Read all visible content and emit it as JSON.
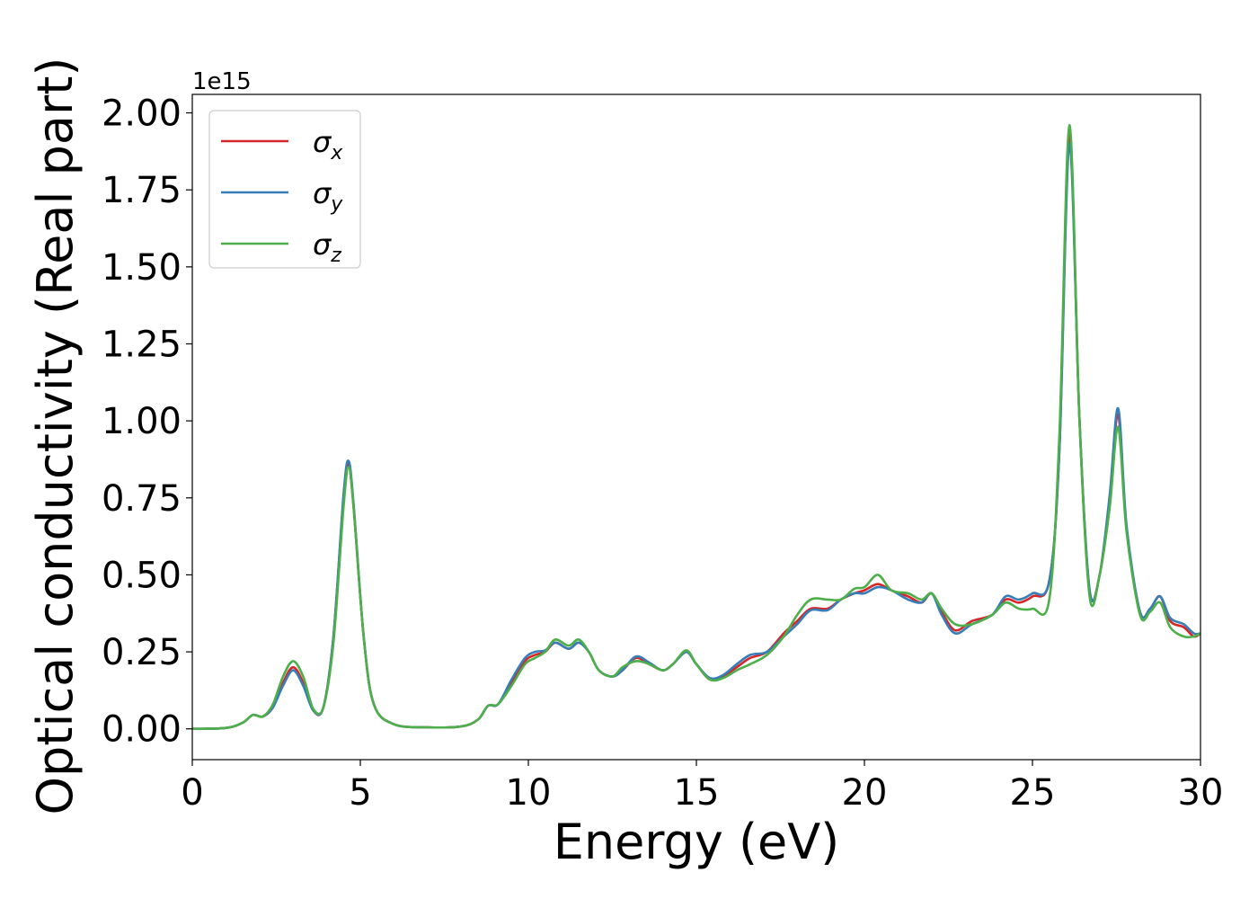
{
  "chart_data": {
    "type": "line",
    "xlabel": "Energy (eV)",
    "ylabel": "Optical conductivity (Real part)",
    "y_offset_label": "1e15",
    "xlim": [
      0,
      30
    ],
    "ylim": [
      -0.1,
      2.06
    ],
    "x_ticks": [
      "0",
      "5",
      "10",
      "15",
      "20",
      "25",
      "30"
    ],
    "y_ticks": [
      "0.00",
      "0.25",
      "0.50",
      "0.75",
      "1.00",
      "1.25",
      "1.50",
      "1.75",
      "2.00"
    ],
    "grid": false,
    "legend_position": "upper-left",
    "series": [
      {
        "name": "σx",
        "symbol": "σ",
        "subscript": "x",
        "color": "#d62728",
        "points": [
          [
            0,
            0.0
          ],
          [
            1.0,
            0.003
          ],
          [
            1.5,
            0.02
          ],
          [
            1.8,
            0.045
          ],
          [
            2.1,
            0.04
          ],
          [
            2.4,
            0.07
          ],
          [
            2.7,
            0.15
          ],
          [
            3.0,
            0.2
          ],
          [
            3.3,
            0.15
          ],
          [
            3.6,
            0.06
          ],
          [
            3.9,
            0.07
          ],
          [
            4.2,
            0.3
          ],
          [
            4.5,
            0.75
          ],
          [
            4.65,
            0.86
          ],
          [
            4.8,
            0.72
          ],
          [
            5.1,
            0.3
          ],
          [
            5.4,
            0.08
          ],
          [
            6.0,
            0.015
          ],
          [
            7.0,
            0.005
          ],
          [
            8.0,
            0.008
          ],
          [
            8.5,
            0.03
          ],
          [
            8.8,
            0.075
          ],
          [
            9.1,
            0.08
          ],
          [
            9.5,
            0.15
          ],
          [
            9.9,
            0.22
          ],
          [
            10.2,
            0.24
          ],
          [
            10.5,
            0.25
          ],
          [
            10.8,
            0.28
          ],
          [
            11.2,
            0.26
          ],
          [
            11.5,
            0.28
          ],
          [
            11.8,
            0.25
          ],
          [
            12.1,
            0.19
          ],
          [
            12.5,
            0.17
          ],
          [
            12.8,
            0.19
          ],
          [
            13.2,
            0.23
          ],
          [
            13.6,
            0.21
          ],
          [
            14.0,
            0.19
          ],
          [
            14.3,
            0.21
          ],
          [
            14.7,
            0.25
          ],
          [
            15.0,
            0.21
          ],
          [
            15.4,
            0.16
          ],
          [
            15.8,
            0.17
          ],
          [
            16.2,
            0.2
          ],
          [
            16.6,
            0.23
          ],
          [
            17.1,
            0.25
          ],
          [
            17.6,
            0.31
          ],
          [
            18.0,
            0.35
          ],
          [
            18.4,
            0.39
          ],
          [
            18.9,
            0.39
          ],
          [
            19.3,
            0.42
          ],
          [
            19.7,
            0.44
          ],
          [
            20.0,
            0.45
          ],
          [
            20.4,
            0.47
          ],
          [
            20.8,
            0.45
          ],
          [
            21.3,
            0.43
          ],
          [
            21.7,
            0.41
          ],
          [
            22.0,
            0.44
          ],
          [
            22.3,
            0.38
          ],
          [
            22.7,
            0.32
          ],
          [
            23.2,
            0.35
          ],
          [
            23.8,
            0.37
          ],
          [
            24.2,
            0.42
          ],
          [
            24.6,
            0.41
          ],
          [
            25.0,
            0.43
          ],
          [
            25.5,
            0.48
          ],
          [
            25.8,
            0.9
          ],
          [
            26.1,
            1.93
          ],
          [
            26.4,
            1.0
          ],
          [
            26.7,
            0.45
          ],
          [
            27.0,
            0.5
          ],
          [
            27.3,
            0.75
          ],
          [
            27.55,
            1.02
          ],
          [
            27.8,
            0.65
          ],
          [
            28.2,
            0.38
          ],
          [
            28.5,
            0.39
          ],
          [
            28.8,
            0.43
          ],
          [
            29.1,
            0.35
          ],
          [
            29.5,
            0.33
          ],
          [
            29.8,
            0.3
          ],
          [
            30,
            0.31
          ]
        ]
      },
      {
        "name": "σy",
        "symbol": "σ",
        "subscript": "y",
        "color": "#377eb8",
        "points": [
          [
            0,
            0.0
          ],
          [
            1.0,
            0.003
          ],
          [
            1.5,
            0.02
          ],
          [
            1.8,
            0.045
          ],
          [
            2.1,
            0.04
          ],
          [
            2.4,
            0.07
          ],
          [
            2.7,
            0.14
          ],
          [
            3.0,
            0.19
          ],
          [
            3.3,
            0.14
          ],
          [
            3.6,
            0.06
          ],
          [
            3.9,
            0.07
          ],
          [
            4.2,
            0.3
          ],
          [
            4.5,
            0.76
          ],
          [
            4.65,
            0.87
          ],
          [
            4.8,
            0.73
          ],
          [
            5.1,
            0.3
          ],
          [
            5.4,
            0.08
          ],
          [
            6.0,
            0.015
          ],
          [
            7.0,
            0.005
          ],
          [
            8.0,
            0.008
          ],
          [
            8.5,
            0.03
          ],
          [
            8.8,
            0.075
          ],
          [
            9.1,
            0.08
          ],
          [
            9.5,
            0.16
          ],
          [
            9.9,
            0.23
          ],
          [
            10.2,
            0.25
          ],
          [
            10.5,
            0.255
          ],
          [
            10.8,
            0.28
          ],
          [
            11.2,
            0.26
          ],
          [
            11.5,
            0.28
          ],
          [
            11.8,
            0.25
          ],
          [
            12.1,
            0.19
          ],
          [
            12.5,
            0.17
          ],
          [
            12.8,
            0.19
          ],
          [
            13.2,
            0.235
          ],
          [
            13.6,
            0.215
          ],
          [
            14.0,
            0.19
          ],
          [
            14.3,
            0.21
          ],
          [
            14.7,
            0.25
          ],
          [
            15.0,
            0.21
          ],
          [
            15.4,
            0.165
          ],
          [
            15.8,
            0.175
          ],
          [
            16.2,
            0.21
          ],
          [
            16.6,
            0.24
          ],
          [
            17.1,
            0.25
          ],
          [
            17.6,
            0.3
          ],
          [
            18.0,
            0.34
          ],
          [
            18.4,
            0.385
          ],
          [
            18.9,
            0.385
          ],
          [
            19.3,
            0.42
          ],
          [
            19.7,
            0.44
          ],
          [
            20.0,
            0.44
          ],
          [
            20.4,
            0.46
          ],
          [
            20.8,
            0.45
          ],
          [
            21.3,
            0.42
          ],
          [
            21.7,
            0.41
          ],
          [
            22.0,
            0.44
          ],
          [
            22.3,
            0.37
          ],
          [
            22.7,
            0.31
          ],
          [
            23.2,
            0.34
          ],
          [
            23.8,
            0.37
          ],
          [
            24.2,
            0.43
          ],
          [
            24.6,
            0.42
          ],
          [
            25.0,
            0.44
          ],
          [
            25.5,
            0.48
          ],
          [
            25.8,
            0.9
          ],
          [
            26.1,
            1.9
          ],
          [
            26.4,
            1.0
          ],
          [
            26.7,
            0.45
          ],
          [
            27.0,
            0.5
          ],
          [
            27.3,
            0.76
          ],
          [
            27.55,
            1.04
          ],
          [
            27.8,
            0.66
          ],
          [
            28.2,
            0.38
          ],
          [
            28.5,
            0.39
          ],
          [
            28.8,
            0.43
          ],
          [
            29.1,
            0.36
          ],
          [
            29.5,
            0.34
          ],
          [
            29.8,
            0.31
          ],
          [
            30,
            0.31
          ]
        ]
      },
      {
        "name": "σz",
        "symbol": "σ",
        "subscript": "z",
        "color": "#4daf4a",
        "points": [
          [
            0,
            0.0
          ],
          [
            1.0,
            0.003
          ],
          [
            1.5,
            0.02
          ],
          [
            1.8,
            0.045
          ],
          [
            2.1,
            0.04
          ],
          [
            2.4,
            0.08
          ],
          [
            2.7,
            0.17
          ],
          [
            3.0,
            0.22
          ],
          [
            3.3,
            0.17
          ],
          [
            3.6,
            0.065
          ],
          [
            3.9,
            0.07
          ],
          [
            4.2,
            0.28
          ],
          [
            4.5,
            0.72
          ],
          [
            4.65,
            0.85
          ],
          [
            4.8,
            0.72
          ],
          [
            5.1,
            0.3
          ],
          [
            5.4,
            0.08
          ],
          [
            6.0,
            0.015
          ],
          [
            7.0,
            0.005
          ],
          [
            8.0,
            0.008
          ],
          [
            8.5,
            0.03
          ],
          [
            8.8,
            0.075
          ],
          [
            9.1,
            0.08
          ],
          [
            9.5,
            0.14
          ],
          [
            9.9,
            0.21
          ],
          [
            10.2,
            0.23
          ],
          [
            10.5,
            0.25
          ],
          [
            10.8,
            0.29
          ],
          [
            11.2,
            0.27
          ],
          [
            11.5,
            0.29
          ],
          [
            11.8,
            0.25
          ],
          [
            12.1,
            0.19
          ],
          [
            12.5,
            0.17
          ],
          [
            12.8,
            0.2
          ],
          [
            13.2,
            0.22
          ],
          [
            13.6,
            0.21
          ],
          [
            14.0,
            0.19
          ],
          [
            14.3,
            0.21
          ],
          [
            14.7,
            0.255
          ],
          [
            15.0,
            0.21
          ],
          [
            15.4,
            0.16
          ],
          [
            15.8,
            0.165
          ],
          [
            16.2,
            0.19
          ],
          [
            16.6,
            0.21
          ],
          [
            17.1,
            0.24
          ],
          [
            17.6,
            0.3
          ],
          [
            18.0,
            0.37
          ],
          [
            18.4,
            0.42
          ],
          [
            18.9,
            0.42
          ],
          [
            19.3,
            0.42
          ],
          [
            19.7,
            0.455
          ],
          [
            20.0,
            0.46
          ],
          [
            20.4,
            0.5
          ],
          [
            20.8,
            0.45
          ],
          [
            21.3,
            0.44
          ],
          [
            21.7,
            0.42
          ],
          [
            22.0,
            0.44
          ],
          [
            22.3,
            0.39
          ],
          [
            22.7,
            0.34
          ],
          [
            23.2,
            0.34
          ],
          [
            23.8,
            0.37
          ],
          [
            24.2,
            0.41
          ],
          [
            24.6,
            0.39
          ],
          [
            25.0,
            0.39
          ],
          [
            25.5,
            0.42
          ],
          [
            25.8,
            0.95
          ],
          [
            26.1,
            1.96
          ],
          [
            26.4,
            1.0
          ],
          [
            26.7,
            0.43
          ],
          [
            27.0,
            0.5
          ],
          [
            27.3,
            0.72
          ],
          [
            27.55,
            0.98
          ],
          [
            27.8,
            0.64
          ],
          [
            28.2,
            0.37
          ],
          [
            28.5,
            0.38
          ],
          [
            28.8,
            0.41
          ],
          [
            29.1,
            0.33
          ],
          [
            29.5,
            0.3
          ],
          [
            29.8,
            0.3
          ],
          [
            30,
            0.31
          ]
        ]
      }
    ]
  }
}
